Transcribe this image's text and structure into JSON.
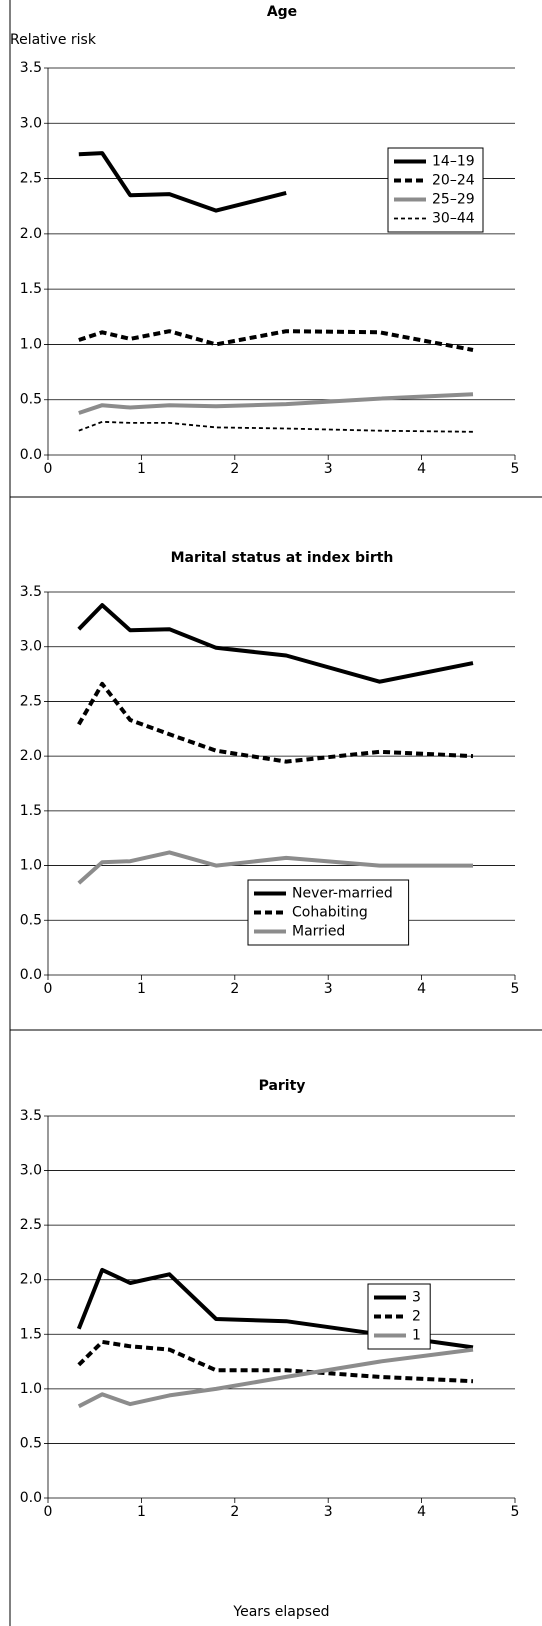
{
  "chart_data": [
    {
      "type": "line",
      "title": "Age",
      "ylabel": "Relative risk",
      "x": [
        0.33,
        0.58,
        0.88,
        1.3,
        1.8,
        2.55,
        3.55,
        4.55
      ],
      "series": [
        {
          "name": "14–19",
          "color": "#000000",
          "dash": "solid",
          "linewidth": "thick",
          "values": [
            2.72,
            2.73,
            2.35,
            2.36,
            2.21,
            2.37,
            null,
            null
          ]
        },
        {
          "name": "20–24",
          "color": "#000000",
          "dash": "dashed",
          "linewidth": "thick",
          "values": [
            1.04,
            1.11,
            1.05,
            1.12,
            1.0,
            1.12,
            1.11,
            0.95
          ]
        },
        {
          "name": "25–29",
          "color": "#8c8c8c",
          "dash": "solid",
          "linewidth": "thick",
          "values": [
            0.38,
            0.45,
            0.43,
            0.45,
            0.44,
            0.46,
            0.51,
            0.55
          ]
        },
        {
          "name": "30–44",
          "color": "#000000",
          "dash": "dashed",
          "linewidth": "thin",
          "values": [
            0.22,
            0.3,
            0.29,
            0.29,
            0.25,
            0.24,
            0.22,
            0.21
          ]
        }
      ],
      "xlim": [
        0,
        5
      ],
      "xticks": [
        0,
        1,
        2,
        3,
        4,
        5
      ],
      "ylim": [
        0,
        3.5
      ],
      "yticks": [
        {
          "value": 0,
          "label": "0.0"
        },
        0.5,
        {
          "value": 1,
          "label": "1.0"
        },
        1.5,
        {
          "value": 2,
          "label": "2.0"
        },
        2.5,
        {
          "value": 3,
          "label": "3.0"
        },
        3.5
      ],
      "grid": true,
      "legend": "upper right"
    },
    {
      "type": "line",
      "title": "Marital status at index birth",
      "x": [
        0.33,
        0.58,
        0.88,
        1.3,
        1.8,
        2.55,
        3.55,
        4.55
      ],
      "series": [
        {
          "name": "Never-married",
          "color": "#000000",
          "dash": "solid",
          "linewidth": "thick",
          "values": [
            3.16,
            3.38,
            3.15,
            3.16,
            2.99,
            2.92,
            2.68,
            2.85
          ]
        },
        {
          "name": "Cohabiting",
          "color": "#000000",
          "dash": "dashed",
          "linewidth": "thick",
          "values": [
            2.29,
            2.66,
            2.33,
            2.2,
            2.05,
            1.95,
            2.04,
            2.0
          ]
        },
        {
          "name": "Married",
          "color": "#8c8c8c",
          "dash": "solid",
          "linewidth": "thick",
          "values": [
            0.84,
            1.03,
            1.04,
            1.12,
            1.0,
            1.07,
            1.0,
            1.0
          ]
        }
      ],
      "xlim": [
        0,
        5
      ],
      "xticks": [
        0,
        1,
        2,
        3,
        4,
        5
      ],
      "ylim": [
        0,
        3.5
      ],
      "yticks": [
        {
          "value": 0,
          "label": "0.0"
        },
        0.5,
        {
          "value": 1,
          "label": "1.0"
        },
        1.5,
        {
          "value": 2,
          "label": "2.0"
        },
        2.5,
        {
          "value": 3,
          "label": "3.0"
        },
        3.5
      ],
      "grid": true,
      "legend": "lower center"
    },
    {
      "type": "line",
      "title": "Parity",
      "xlabel": "Years elapsed",
      "x": [
        0.33,
        0.58,
        0.88,
        1.3,
        1.8,
        2.55,
        3.55,
        4.55
      ],
      "series": [
        {
          "name": "3",
          "color": "#000000",
          "dash": "solid",
          "linewidth": "thick",
          "values": [
            1.55,
            2.09,
            1.97,
            2.05,
            1.64,
            1.62,
            1.5,
            1.38
          ]
        },
        {
          "name": "2",
          "color": "#000000",
          "dash": "dashed",
          "linewidth": "thick",
          "values": [
            1.22,
            1.43,
            1.39,
            1.36,
            1.17,
            1.17,
            1.11,
            1.07
          ]
        },
        {
          "name": "1",
          "color": "#8c8c8c",
          "dash": "solid",
          "linewidth": "thick",
          "values": [
            0.84,
            0.95,
            0.86,
            0.94,
            1.0,
            1.11,
            1.25,
            1.36
          ]
        }
      ],
      "xlim": [
        0,
        5
      ],
      "xticks": [
        0,
        1,
        2,
        3,
        4,
        5
      ],
      "ylim": [
        0,
        3.5
      ],
      "yticks": [
        {
          "value": 0,
          "label": "0.0"
        },
        0.5,
        {
          "value": 1,
          "label": "1.0"
        },
        1.5,
        {
          "value": 2,
          "label": "2.0"
        },
        2.5,
        {
          "value": 3,
          "label": "3.0"
        },
        3.5
      ],
      "grid": true,
      "legend": "center right"
    }
  ]
}
